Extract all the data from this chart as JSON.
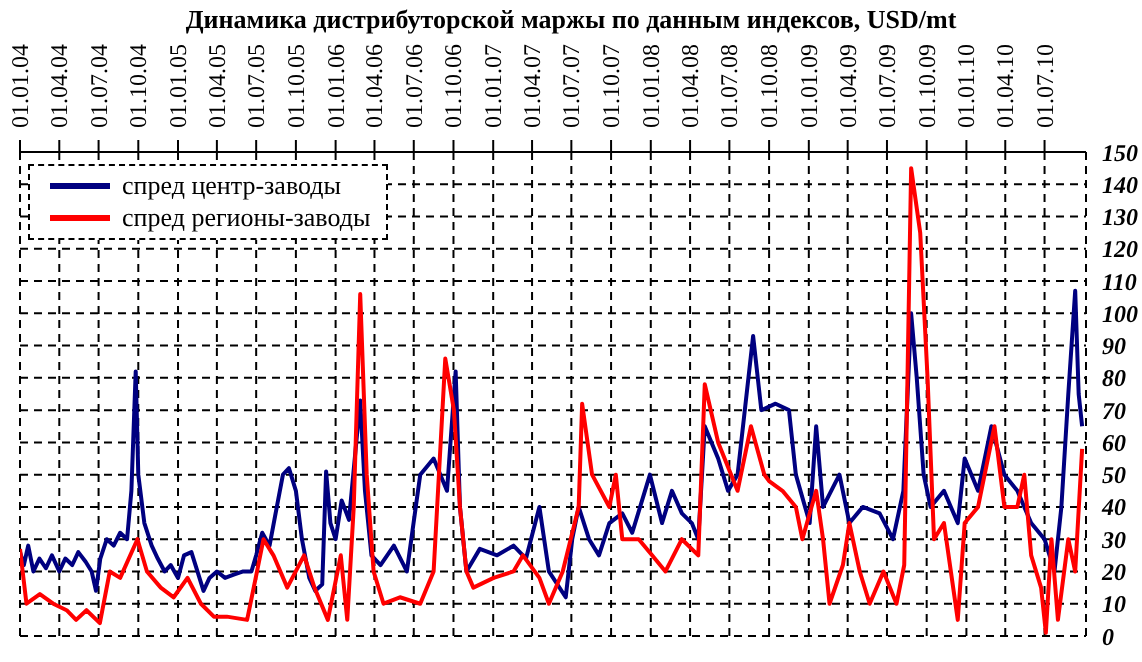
{
  "chart_data": {
    "type": "line",
    "title": "Динамика дистрибуторской маржы по данным индексов, USD/mt",
    "xlim": [
      "2004-01-01",
      "2010-10-05"
    ],
    "xticks": [
      {
        "value": "2004-01-01",
        "label": "01.01.04"
      },
      {
        "value": "2004-04-01",
        "label": "01.04.04"
      },
      {
        "value": "2004-07-01",
        "label": "01.07.04"
      },
      {
        "value": "2004-10-01",
        "label": "01.10.04"
      },
      {
        "value": "2005-01-01",
        "label": "01.01.05"
      },
      {
        "value": "2005-04-01",
        "label": "01.04.05"
      },
      {
        "value": "2005-07-01",
        "label": "01.07.05"
      },
      {
        "value": "2005-10-01",
        "label": "01.10.05"
      },
      {
        "value": "2006-01-01",
        "label": "01.01.06"
      },
      {
        "value": "2006-04-01",
        "label": "01.04.06"
      },
      {
        "value": "2006-07-01",
        "label": "01.07.06"
      },
      {
        "value": "2006-10-01",
        "label": "01.10.06"
      },
      {
        "value": "2007-01-01",
        "label": "01.01.07"
      },
      {
        "value": "2007-04-01",
        "label": "01.04.07"
      },
      {
        "value": "2007-07-01",
        "label": "01.07.07"
      },
      {
        "value": "2007-10-01",
        "label": "01.10.07"
      },
      {
        "value": "2008-01-01",
        "label": "01.01.08"
      },
      {
        "value": "2008-04-01",
        "label": "01.04.08"
      },
      {
        "value": "2008-07-01",
        "label": "01.07.08"
      },
      {
        "value": "2008-10-01",
        "label": "01.10.08"
      },
      {
        "value": "2009-01-01",
        "label": "01.01.09"
      },
      {
        "value": "2009-04-01",
        "label": "01.04.09"
      },
      {
        "value": "2009-07-01",
        "label": "01.07.09"
      },
      {
        "value": "2009-10-01",
        "label": "01.10.09"
      },
      {
        "value": "2010-01-01",
        "label": "01.01.10"
      },
      {
        "value": "2010-04-01",
        "label": "01.04.10"
      },
      {
        "value": "2010-07-01",
        "label": "01.07.10"
      }
    ],
    "ylim": [
      0,
      150
    ],
    "yticks": [
      0,
      10,
      20,
      30,
      40,
      50,
      60,
      70,
      80,
      90,
      100,
      110,
      120,
      130,
      140,
      150
    ],
    "grid": true,
    "legend": "top left",
    "line_style": "solid",
    "marker": "none",
    "series": [
      {
        "name": "спред центр-заводы",
        "color": "#000080",
        "x": [
          "2004-01-01",
          "2004-01-10",
          "2004-01-20",
          "2004-02-01",
          "2004-02-15",
          "2004-03-01",
          "2004-03-15",
          "2004-04-01",
          "2004-04-15",
          "2004-05-01",
          "2004-05-15",
          "2004-06-01",
          "2004-06-15",
          "2004-06-25",
          "2004-07-05",
          "2004-07-20",
          "2004-08-05",
          "2004-08-20",
          "2004-09-05",
          "2004-09-15",
          "2004-09-25",
          "2004-10-01",
          "2004-10-15",
          "2004-11-01",
          "2004-11-15",
          "2004-12-01",
          "2004-12-15",
          "2005-01-01",
          "2005-01-15",
          "2005-02-01",
          "2005-02-15",
          "2005-03-01",
          "2005-03-15",
          "2005-04-01",
          "2005-04-20",
          "2005-05-10",
          "2005-06-01",
          "2005-06-20",
          "2005-07-01",
          "2005-07-15",
          "2005-08-01",
          "2005-08-15",
          "2005-09-01",
          "2005-09-15",
          "2005-10-01",
          "2005-10-15",
          "2005-11-01",
          "2005-11-15",
          "2005-12-01",
          "2005-12-10",
          "2005-12-20",
          "2006-01-01",
          "2006-01-15",
          "2006-02-01",
          "2006-02-27",
          "2006-03-10",
          "2006-03-25",
          "2006-04-15",
          "2006-05-16",
          "2006-06-15",
          "2006-07-16",
          "2006-08-16",
          "2006-09-16",
          "2006-10-06",
          "2006-10-16",
          "2006-10-31",
          "2006-12-01",
          "2007-01-10",
          "2007-02-17",
          "2007-03-18",
          "2007-04-18",
          "2007-05-10",
          "2007-06-18",
          "2007-07-03",
          "2007-07-18",
          "2007-08-11",
          "2007-09-03",
          "2007-09-27",
          "2007-10-27",
          "2007-11-19",
          "2007-12-30",
          "2008-01-27",
          "2008-02-19",
          "2008-03-13",
          "2008-04-05",
          "2008-04-20",
          "2008-05-05",
          "2008-06-05",
          "2008-06-28",
          "2008-07-20",
          "2008-08-25",
          "2008-09-13",
          "2008-10-16",
          "2008-11-16",
          "2008-12-02",
          "2009-01-03",
          "2009-01-18",
          "2009-02-03",
          "2009-03-13",
          "2009-04-05",
          "2009-05-06",
          "2009-06-14",
          "2009-07-15",
          "2009-08-08",
          "2009-08-26",
          "2009-09-08",
          "2009-09-24",
          "2009-10-10",
          "2009-11-10",
          "2009-12-12",
          "2009-12-28",
          "2010-01-28",
          "2010-02-28",
          "2010-03-30",
          "2010-04-29",
          "2010-05-31",
          "2010-07-01",
          "2010-07-24",
          "2010-08-09",
          "2010-08-25",
          "2010-09-10",
          "2010-09-18",
          "2010-09-26"
        ],
        "values": [
          26,
          22,
          28,
          20,
          24,
          21,
          25,
          20,
          24,
          22,
          26,
          23,
          20,
          14,
          24,
          30,
          28,
          32,
          30,
          45,
          82,
          50,
          35,
          28,
          24,
          20,
          22,
          18,
          25,
          26,
          20,
          14,
          18,
          20,
          18,
          19,
          20,
          20,
          25,
          32,
          28,
          38,
          50,
          52,
          45,
          30,
          18,
          14,
          16,
          51,
          35,
          30,
          42,
          36,
          73,
          45,
          25,
          22,
          28,
          20,
          50,
          55,
          45,
          82,
          40,
          20,
          27,
          25,
          28,
          24,
          40,
          20,
          12,
          30,
          40,
          30,
          25,
          35,
          38,
          32,
          50,
          35,
          45,
          38,
          35,
          30,
          65,
          55,
          45,
          50,
          93,
          70,
          72,
          70,
          50,
          35,
          65,
          40,
          50,
          35,
          40,
          38,
          30,
          45,
          100,
          80,
          50,
          40,
          45,
          35,
          55,
          45,
          65,
          50,
          45,
          35,
          30,
          20,
          40,
          75,
          107,
          75,
          65
        ]
      },
      {
        "name": "спред регионы-заводы",
        "color": "#ff0000",
        "x": [
          "2004-01-01",
          "2004-01-16",
          "2004-02-16",
          "2004-03-18",
          "2004-04-18",
          "2004-05-10",
          "2004-06-03",
          "2004-07-04",
          "2004-07-27",
          "2004-08-20",
          "2004-09-29",
          "2004-10-21",
          "2004-11-22",
          "2004-12-22",
          "2005-01-23",
          "2005-02-23",
          "2005-03-25",
          "2005-04-24",
          "2005-06-10",
          "2005-07-03",
          "2005-07-18",
          "2005-08-10",
          "2005-09-11",
          "2005-10-20",
          "2005-11-13",
          "2005-12-14",
          "2006-01-13",
          "2006-01-28",
          "2006-02-12",
          "2006-02-27",
          "2006-03-14",
          "2006-03-30",
          "2006-04-22",
          "2006-05-30",
          "2006-07-16",
          "2006-08-16",
          "2006-09-12",
          "2006-10-02",
          "2006-10-16",
          "2006-10-31",
          "2006-11-16",
          "2007-01-02",
          "2007-02-17",
          "2007-03-11",
          "2007-04-18",
          "2007-05-10",
          "2007-06-11",
          "2007-07-18",
          "2007-07-26",
          "2007-08-18",
          "2007-09-27",
          "2007-10-12",
          "2007-10-27",
          "2007-12-04",
          "2008-01-04",
          "2008-02-04",
          "2008-03-13",
          "2008-04-20",
          "2008-05-05",
          "2008-06-05",
          "2008-07-20",
          "2008-08-20",
          "2008-09-20",
          "2008-10-01",
          "2008-11-01",
          "2008-12-02",
          "2008-12-17",
          "2009-01-18",
          "2009-02-03",
          "2009-02-18",
          "2009-03-21",
          "2009-04-05",
          "2009-04-29",
          "2009-05-22",
          "2009-06-23",
          "2009-07-23",
          "2009-08-10",
          "2009-08-26",
          "2009-09-16",
          "2009-10-03",
          "2009-10-18",
          "2009-11-10",
          "2009-12-12",
          "2009-12-28",
          "2010-01-28",
          "2010-03-07",
          "2010-03-30",
          "2010-04-29",
          "2010-05-15",
          "2010-05-31",
          "2010-06-23",
          "2010-07-04",
          "2010-07-17",
          "2010-08-01",
          "2010-08-25",
          "2010-09-10",
          "2010-09-26"
        ],
        "values": [
          27,
          10,
          13,
          10,
          8,
          5,
          8,
          4,
          20,
          18,
          30,
          20,
          15,
          12,
          18,
          10,
          6,
          6,
          5,
          20,
          30,
          25,
          15,
          25,
          15,
          5,
          25,
          5,
          40,
          106,
          50,
          20,
          10,
          12,
          10,
          20,
          86,
          70,
          40,
          20,
          15,
          18,
          20,
          25,
          18,
          10,
          20,
          40,
          72,
          50,
          40,
          50,
          30,
          30,
          25,
          20,
          30,
          25,
          78,
          60,
          45,
          65,
          50,
          48,
          45,
          40,
          30,
          45,
          30,
          10,
          22,
          35,
          20,
          10,
          20,
          10,
          22,
          145,
          125,
          80,
          30,
          35,
          5,
          35,
          40,
          65,
          40,
          40,
          50,
          25,
          15,
          1,
          30,
          5,
          30,
          20,
          58
        ]
      }
    ]
  }
}
